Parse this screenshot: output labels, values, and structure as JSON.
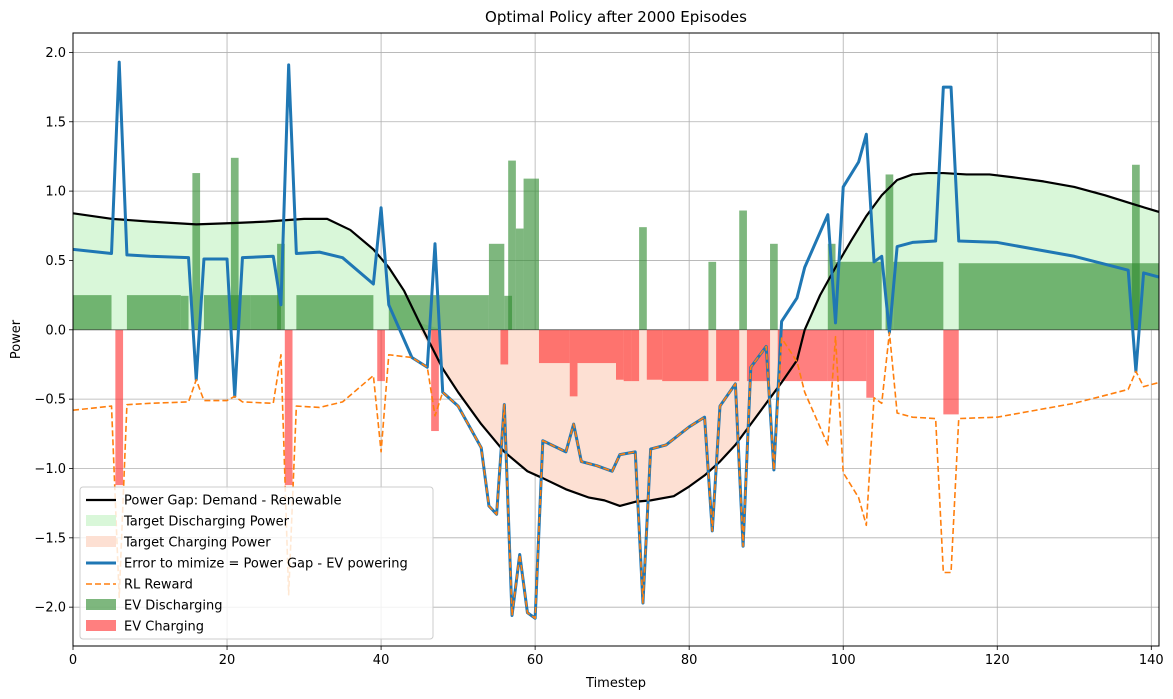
{
  "chart_data": {
    "type": "line",
    "title": "Optimal Policy after 2000 Episodes",
    "xlabel": "Timestep",
    "ylabel": "Power",
    "xlim": [
      0,
      141
    ],
    "ylim": [
      -2.28,
      2.14
    ],
    "xticks": [
      0,
      20,
      40,
      60,
      80,
      100,
      120,
      140
    ],
    "yticks": [
      -2.0,
      -1.5,
      -1.0,
      -0.5,
      0.0,
      0.5,
      1.0,
      1.5,
      2.0
    ],
    "ytick_labels": [
      "−2.0",
      "−1.5",
      "−1.0",
      "−0.5",
      "0.0",
      "0.5",
      "1.0",
      "1.5",
      "2.0"
    ],
    "grid": true,
    "legend_position": "lower-left",
    "colors": {
      "power_gap": "#000000",
      "target_discharging": "#d9f7d9",
      "target_charging": "#fde0d3",
      "error": "#1f77b4",
      "reward": "#ff7f0e",
      "ev_discharging": "#2e8b2e",
      "ev_charging": "#ff3030"
    },
    "legend": [
      {
        "key": "power_gap",
        "label": "Power Gap: Demand - Renewable",
        "style": "line"
      },
      {
        "key": "target_discharging",
        "label": "Target Discharging Power",
        "style": "patch"
      },
      {
        "key": "target_charging",
        "label": "Target Charging Power",
        "style": "patch"
      },
      {
        "key": "error",
        "label": "Error to mimize = Power Gap - EV powering",
        "style": "thick-line"
      },
      {
        "key": "reward",
        "label": "RL Reward",
        "style": "dashed"
      },
      {
        "key": "ev_discharging",
        "label": "EV Discharging",
        "style": "patch"
      },
      {
        "key": "ev_charging",
        "label": "EV Charging",
        "style": "patch"
      }
    ],
    "series": [
      {
        "name": "Power Gap: Demand - Renewable",
        "x": [
          0,
          5,
          10,
          16,
          21,
          25,
          30,
          33,
          36,
          39,
          41,
          43,
          45,
          48,
          50,
          53,
          56,
          59,
          61,
          64,
          67,
          69,
          71,
          73,
          75,
          78,
          80,
          82,
          84,
          86,
          88,
          90,
          92,
          94,
          95,
          97,
          99,
          101,
          103,
          105,
          107,
          109,
          111,
          113,
          116,
          119,
          122,
          126,
          130,
          134,
          138,
          141
        ],
        "values": [
          0.84,
          0.8,
          0.78,
          0.76,
          0.77,
          0.78,
          0.8,
          0.8,
          0.72,
          0.58,
          0.45,
          0.28,
          0.05,
          -0.28,
          -0.45,
          -0.68,
          -0.88,
          -1.02,
          -1.07,
          -1.15,
          -1.21,
          -1.23,
          -1.27,
          -1.24,
          -1.23,
          -1.2,
          -1.13,
          -1.05,
          -0.95,
          -0.83,
          -0.68,
          -0.53,
          -0.38,
          -0.22,
          0.0,
          0.25,
          0.45,
          0.64,
          0.82,
          0.97,
          1.08,
          1.12,
          1.13,
          1.13,
          1.12,
          1.12,
          1.1,
          1.07,
          1.03,
          0.97,
          0.9,
          0.85
        ]
      },
      {
        "name": "Error to mimize = Power Gap - EV powering",
        "x": [
          0,
          5,
          6,
          7,
          10,
          15,
          16,
          17,
          20,
          21,
          22,
          26,
          27,
          28,
          29,
          32,
          35,
          39,
          40,
          41,
          44,
          46,
          47,
          48,
          50,
          53,
          54,
          55,
          56,
          57,
          58,
          59,
          60,
          61,
          64,
          65,
          66,
          68,
          70,
          71,
          73,
          74,
          75,
          77,
          80,
          82,
          83,
          84,
          86,
          87,
          88,
          90,
          91,
          92,
          94,
          95,
          98,
          99,
          100,
          102,
          103,
          104,
          105,
          106,
          107,
          109,
          112,
          113,
          114,
          115,
          120,
          125,
          130,
          137,
          138,
          139,
          141
        ],
        "values": [
          0.58,
          0.55,
          1.93,
          0.54,
          0.53,
          0.52,
          -0.36,
          0.51,
          0.51,
          -0.48,
          0.52,
          0.53,
          0.18,
          1.91,
          0.55,
          0.56,
          0.52,
          0.33,
          0.88,
          0.18,
          -0.2,
          -0.27,
          0.62,
          -0.45,
          -0.55,
          -0.85,
          -1.27,
          -1.33,
          -0.54,
          -2.06,
          -1.62,
          -2.04,
          -2.08,
          -0.8,
          -0.88,
          -0.68,
          -0.95,
          -0.98,
          -1.02,
          -0.9,
          -0.88,
          -1.97,
          -0.86,
          -0.83,
          -0.7,
          -0.63,
          -1.45,
          -0.55,
          -0.39,
          -1.56,
          -0.27,
          -0.12,
          -1.01,
          0.06,
          0.23,
          0.45,
          0.83,
          0.05,
          1.03,
          1.21,
          1.41,
          0.49,
          0.53,
          -0.02,
          0.6,
          0.63,
          0.64,
          1.75,
          1.75,
          0.64,
          0.63,
          0.58,
          0.53,
          0.43,
          -0.3,
          0.41,
          0.38
        ]
      },
      {
        "name": "RL Reward",
        "x": [
          0,
          5,
          6,
          7,
          10,
          15,
          16,
          17,
          20,
          21,
          22,
          26,
          27,
          28,
          29,
          32,
          35,
          39,
          40,
          41,
          44,
          46,
          47,
          48,
          50,
          53,
          54,
          55,
          56,
          57,
          58,
          59,
          60,
          61,
          64,
          65,
          66,
          68,
          70,
          71,
          73,
          74,
          75,
          77,
          80,
          82,
          83,
          84,
          86,
          87,
          88,
          90,
          91,
          92,
          94,
          95,
          98,
          99,
          100,
          102,
          103,
          104,
          105,
          106,
          107,
          109,
          112,
          113,
          114,
          115,
          120,
          125,
          130,
          137,
          138,
          139,
          141
        ],
        "values": [
          -0.58,
          -0.55,
          -1.93,
          -0.54,
          -0.53,
          -0.52,
          -0.36,
          -0.51,
          -0.51,
          -0.48,
          -0.52,
          -0.53,
          -0.18,
          -1.91,
          -0.55,
          -0.56,
          -0.52,
          -0.33,
          -0.88,
          -0.18,
          -0.2,
          -0.27,
          -0.62,
          -0.45,
          -0.55,
          -0.85,
          -1.27,
          -1.33,
          -0.54,
          -2.06,
          -1.62,
          -2.04,
          -2.08,
          -0.8,
          -0.88,
          -0.68,
          -0.95,
          -0.98,
          -1.02,
          -0.9,
          -0.88,
          -1.97,
          -0.86,
          -0.83,
          -0.7,
          -0.63,
          -1.45,
          -0.55,
          -0.39,
          -1.56,
          -0.27,
          -0.12,
          -1.01,
          -0.06,
          -0.23,
          -0.45,
          -0.83,
          -0.05,
          -1.03,
          -1.21,
          -1.41,
          -0.49,
          -0.53,
          -0.02,
          -0.6,
          -0.63,
          -0.64,
          -1.75,
          -1.75,
          -0.64,
          -0.63,
          -0.58,
          -0.53,
          -0.43,
          -0.3,
          -0.41,
          -0.38
        ]
      },
      {
        "name": "EV Discharging",
        "bars": [
          [
            0,
            5,
            0.25
          ],
          [
            7,
            14,
            0.25
          ],
          [
            14,
            15,
            0.245
          ],
          [
            15.5,
            16.5,
            1.13
          ],
          [
            17,
            23,
            0.25
          ],
          [
            20.5,
            21.5,
            1.24
          ],
          [
            23,
            27,
            0.25
          ],
          [
            26.5,
            27.5,
            0.62
          ],
          [
            29,
            39,
            0.25
          ],
          [
            41,
            54,
            0.25
          ],
          [
            54,
            56,
            0.62
          ],
          [
            56,
            57,
            0.245
          ],
          [
            56.5,
            57.5,
            1.22
          ],
          [
            57.5,
            58.5,
            0.73
          ],
          [
            58.5,
            60.5,
            1.09
          ],
          [
            73.5,
            74.5,
            0.74
          ],
          [
            82.5,
            83.5,
            0.49
          ],
          [
            86.5,
            87.5,
            0.86
          ],
          [
            90.5,
            91.5,
            0.62
          ],
          [
            98,
            99,
            0.62
          ],
          [
            99,
            105,
            0.49
          ],
          [
            105.5,
            106.5,
            1.12
          ],
          [
            106.5,
            113,
            0.49
          ],
          [
            115,
            141,
            0.48
          ],
          [
            137.5,
            138.5,
            1.19
          ]
        ]
      },
      {
        "name": "EV Charging",
        "bars": [
          [
            5.5,
            6.5,
            -1.12
          ],
          [
            27.5,
            28.5,
            -1.12
          ],
          [
            39.5,
            40.5,
            -0.37
          ],
          [
            46.5,
            47.5,
            -0.73
          ],
          [
            55.5,
            56.5,
            -0.25
          ],
          [
            60.5,
            64.5,
            -0.24
          ],
          [
            64.5,
            65.5,
            -0.48
          ],
          [
            65.5,
            70.5,
            -0.24
          ],
          [
            70.5,
            71.5,
            -0.36
          ],
          [
            71.5,
            72.5,
            -0.37
          ],
          [
            72.5,
            73.5,
            -0.37
          ],
          [
            74.5,
            76.5,
            -0.36
          ],
          [
            76.5,
            82.5,
            -0.37
          ],
          [
            83.5,
            86.5,
            -0.37
          ],
          [
            87.5,
            90.5,
            -0.37
          ],
          [
            91.5,
            98,
            -0.37
          ],
          [
            98,
            103,
            -0.37
          ],
          [
            103,
            104,
            -0.49
          ],
          [
            113,
            115,
            -0.61
          ]
        ]
      }
    ]
  }
}
